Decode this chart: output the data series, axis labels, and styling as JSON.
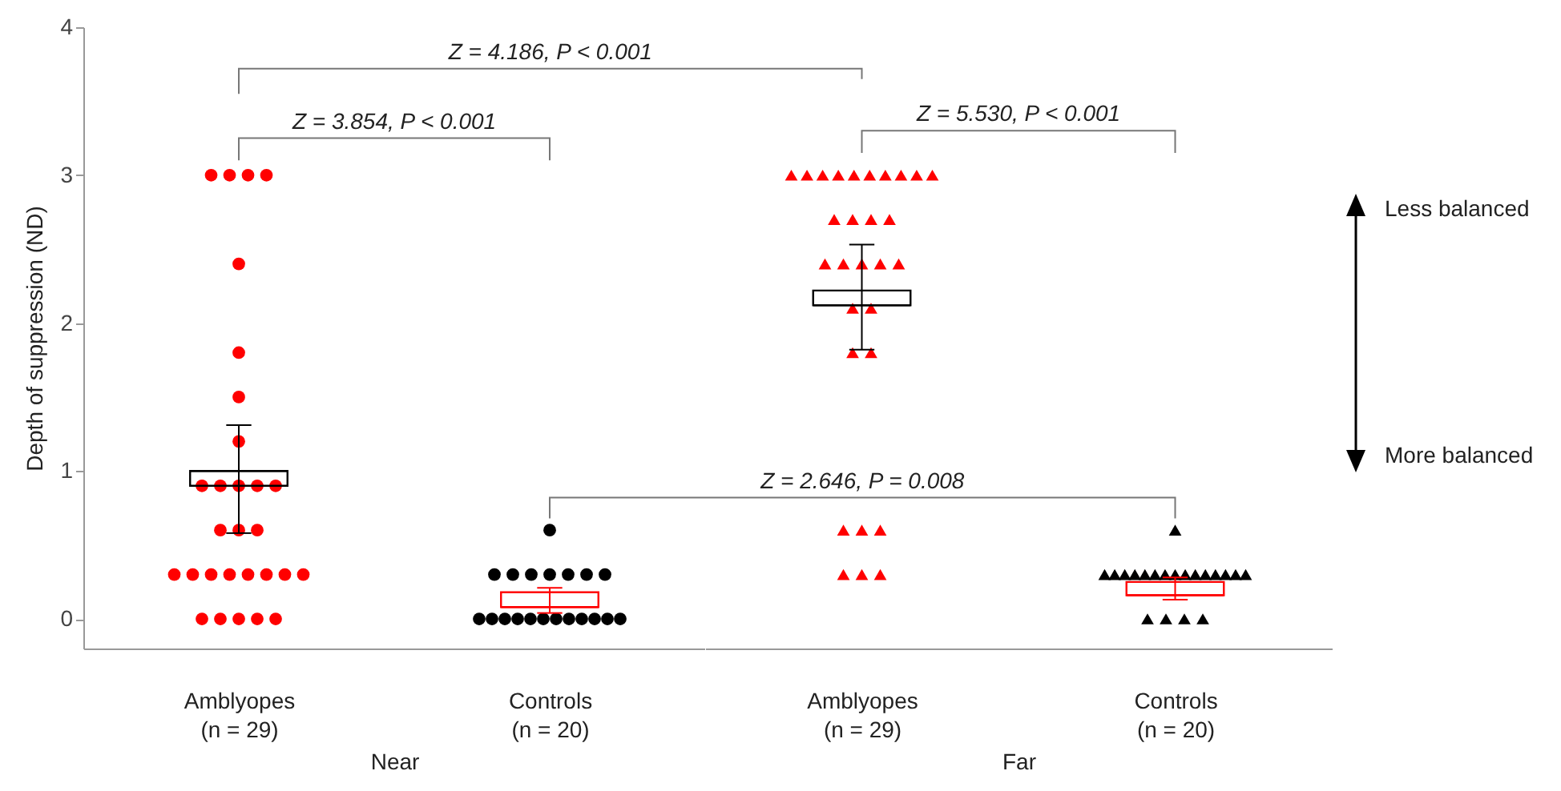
{
  "chart_data": [
    {
      "type": "scatter",
      "ylabel": "Depth of suppression (ND)",
      "xlabel": "Near",
      "categories": [
        "Amblyopes\n(n = 29)",
        "Controls\n(n = 20)"
      ],
      "ylim": [
        -0.2,
        4
      ],
      "yticks": [
        0,
        1,
        2,
        3,
        4
      ],
      "series": [
        {
          "marker": "circle",
          "color": "#ff0000",
          "x": [
            "Amblyopes\n(n = 29)",
            "Amblyopes\n(n = 29)",
            "Amblyopes\n(n = 29)",
            "Amblyopes\n(n = 29)",
            "Amblyopes\n(n = 29)",
            "Amblyopes\n(n = 29)",
            "Amblyopes\n(n = 29)",
            "Amblyopes\n(n = 29)",
            "Amblyopes\n(n = 29)",
            "Amblyopes\n(n = 29)",
            "Amblyopes\n(n = 29)",
            "Amblyopes\n(n = 29)",
            "Amblyopes\n(n = 29)",
            "Amblyopes\n(n = 29)",
            "Amblyopes\n(n = 29)",
            "Amblyopes\n(n = 29)",
            "Amblyopes\n(n = 29)",
            "Amblyopes\n(n = 29)",
            "Amblyopes\n(n = 29)",
            "Amblyopes\n(n = 29)",
            "Amblyopes\n(n = 29)",
            "Amblyopes\n(n = 29)",
            "Amblyopes\n(n = 29)",
            "Amblyopes\n(n = 29)",
            "Amblyopes\n(n = 29)",
            "Amblyopes\n(n = 29)",
            "Amblyopes\n(n = 29)",
            "Amblyopes\n(n = 29)",
            "Amblyopes\n(n = 29)"
          ],
          "values": [
            3,
            3,
            3,
            3,
            2.4,
            1.8,
            1.5,
            1.2,
            0.9,
            0.9,
            0.9,
            0.9,
            0.9,
            0.6,
            0.6,
            0.6,
            0.3,
            0.3,
            0.3,
            0.3,
            0.3,
            0.3,
            0.3,
            0.3,
            0,
            0,
            0,
            0,
            0
          ]
        },
        {
          "marker": "circle",
          "color": "#000000",
          "x": [
            "Controls\n(n = 20)",
            "Controls\n(n = 20)",
            "Controls\n(n = 20)",
            "Controls\n(n = 20)",
            "Controls\n(n = 20)",
            "Controls\n(n = 20)",
            "Controls\n(n = 20)",
            "Controls\n(n = 20)",
            "Controls\n(n = 20)",
            "Controls\n(n = 20)",
            "Controls\n(n = 20)",
            "Controls\n(n = 20)",
            "Controls\n(n = 20)",
            "Controls\n(n = 20)",
            "Controls\n(n = 20)",
            "Controls\n(n = 20)",
            "Controls\n(n = 20)",
            "Controls\n(n = 20)",
            "Controls\n(n = 20)",
            "Controls\n(n = 20)"
          ],
          "values": [
            0.6,
            0.3,
            0.3,
            0.3,
            0.3,
            0.3,
            0.3,
            0.3,
            0,
            0,
            0,
            0,
            0,
            0,
            0,
            0,
            0,
            0,
            0,
            0
          ]
        },
        {
          "type": "box",
          "colors": [
            "#000000",
            "#ff0000"
          ],
          "boxes": [
            {
              "low": 0.58,
              "q1": 0.9,
              "median": 1.0,
              "q3": 1.0,
              "high": 1.31
            },
            {
              "low": 0.04,
              "q1": 0.08,
              "median": 0.08,
              "q3": 0.18,
              "high": 0.21
            }
          ]
        }
      ],
      "annotations": [
        "Z = 4.186, P < 0.001",
        "Z = 3.854, P < 0.001"
      ]
    },
    {
      "type": "scatter",
      "xlabel": "Far",
      "tick_labels": "x",
      "categories": [
        "Amblyopes\n(n = 29)",
        "Controls\n(n = 20)"
      ],
      "ylim": [
        -0.2,
        4
      ],
      "yticks": [
        0,
        1,
        2,
        3,
        4
      ],
      "series": [
        {
          "marker": "triangle",
          "color": "#ff0000",
          "x": [
            "Amblyopes\n(n = 29)",
            "Amblyopes\n(n = 29)",
            "Amblyopes\n(n = 29)",
            "Amblyopes\n(n = 29)",
            "Amblyopes\n(n = 29)",
            "Amblyopes\n(n = 29)",
            "Amblyopes\n(n = 29)",
            "Amblyopes\n(n = 29)",
            "Amblyopes\n(n = 29)",
            "Amblyopes\n(n = 29)",
            "Amblyopes\n(n = 29)",
            "Amblyopes\n(n = 29)",
            "Amblyopes\n(n = 29)",
            "Amblyopes\n(n = 29)",
            "Amblyopes\n(n = 29)",
            "Amblyopes\n(n = 29)",
            "Amblyopes\n(n = 29)",
            "Amblyopes\n(n = 29)",
            "Amblyopes\n(n = 29)",
            "Amblyopes\n(n = 29)",
            "Amblyopes\n(n = 29)",
            "Amblyopes\n(n = 29)",
            "Amblyopes\n(n = 29)",
            "Amblyopes\n(n = 29)",
            "Amblyopes\n(n = 29)",
            "Amblyopes\n(n = 29)",
            "Amblyopes\n(n = 29)",
            "Amblyopes\n(n = 29)",
            "Amblyopes\n(n = 29)"
          ],
          "values": [
            3,
            3,
            3,
            3,
            3,
            3,
            3,
            3,
            3,
            3,
            2.7,
            2.7,
            2.7,
            2.7,
            2.4,
            2.4,
            2.4,
            2.4,
            2.4,
            2.1,
            2.1,
            1.8,
            1.8,
            0.6,
            0.6,
            0.6,
            0.3,
            0.3,
            0.3
          ]
        },
        {
          "marker": "triangle",
          "color": "#000000",
          "x": [
            "Controls\n(n = 20)",
            "Controls\n(n = 20)",
            "Controls\n(n = 20)",
            "Controls\n(n = 20)",
            "Controls\n(n = 20)",
            "Controls\n(n = 20)",
            "Controls\n(n = 20)",
            "Controls\n(n = 20)",
            "Controls\n(n = 20)",
            "Controls\n(n = 20)",
            "Controls\n(n = 20)",
            "Controls\n(n = 20)",
            "Controls\n(n = 20)",
            "Controls\n(n = 20)",
            "Controls\n(n = 20)",
            "Controls\n(n = 20)",
            "Controls\n(n = 20)",
            "Controls\n(n = 20)",
            "Controls\n(n = 20)",
            "Controls\n(n = 20)"
          ],
          "values": [
            0.6,
            0.3,
            0.3,
            0.3,
            0.3,
            0.3,
            0.3,
            0.3,
            0.3,
            0.3,
            0.3,
            0.3,
            0.3,
            0.3,
            0.3,
            0.3,
            0,
            0,
            0,
            0
          ]
        },
        {
          "type": "box",
          "colors": [
            "#000000",
            "#ff0000"
          ],
          "boxes": [
            {
              "low": 1.82,
              "q1": 2.12,
              "median": 2.12,
              "q3": 2.22,
              "high": 2.53
            },
            {
              "low": 0.13,
              "q1": 0.16,
              "median": 0.16,
              "q3": 0.25,
              "high": 0.28
            }
          ]
        }
      ],
      "annotations": [
        "Z = 5.530, P < 0.001",
        "Z = 2.646, P = 0.008",
        "Less balanced",
        "More balanced"
      ]
    }
  ]
}
